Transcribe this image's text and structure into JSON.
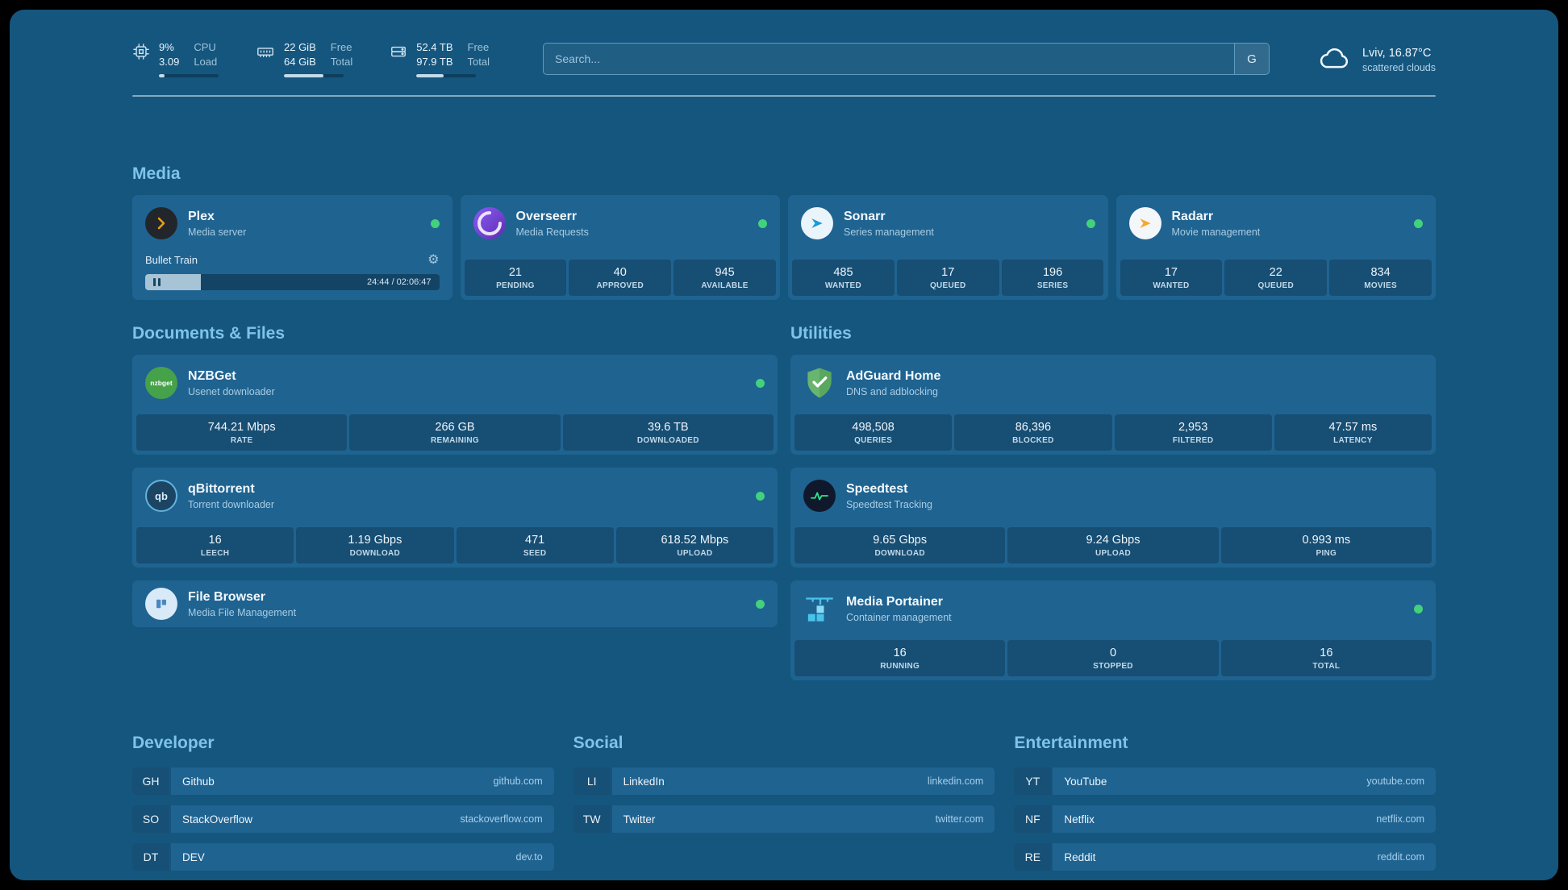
{
  "header": {
    "cpu": {
      "value_top": "9%",
      "value_bottom": "3.09",
      "label_top": "CPU",
      "label_bottom": "Load",
      "progress_percent": 9
    },
    "memory": {
      "value_top": "22 GiB",
      "value_bottom": "64 GiB",
      "label_top": "Free",
      "label_bottom": "Total",
      "progress_percent": 66
    },
    "disk": {
      "value_top": "52.4 TB",
      "value_bottom": "97.9 TB",
      "label_top": "Free",
      "label_bottom": "Total",
      "progress_percent": 46
    },
    "search": {
      "placeholder": "Search...",
      "provider_button": "G"
    },
    "weather": {
      "location": "Lviv, 16.87°C",
      "condition": "scattered clouds"
    }
  },
  "sections": {
    "media": {
      "title": "Media",
      "plex": {
        "name": "Plex",
        "subtitle": "Media server",
        "now_playing": "Bullet Train",
        "elapsed_total": "24:44 / 02:06:47",
        "progress_percent": 19
      },
      "overseerr": {
        "name": "Overseerr",
        "subtitle": "Media Requests",
        "stats": [
          {
            "value": "21",
            "label": "PENDING"
          },
          {
            "value": "40",
            "label": "APPROVED"
          },
          {
            "value": "945",
            "label": "AVAILABLE"
          }
        ]
      },
      "sonarr": {
        "name": "Sonarr",
        "subtitle": "Series management",
        "stats": [
          {
            "value": "485",
            "label": "WANTED"
          },
          {
            "value": "17",
            "label": "QUEUED"
          },
          {
            "value": "196",
            "label": "SERIES"
          }
        ]
      },
      "radarr": {
        "name": "Radarr",
        "subtitle": "Movie management",
        "stats": [
          {
            "value": "17",
            "label": "WANTED"
          },
          {
            "value": "22",
            "label": "QUEUED"
          },
          {
            "value": "834",
            "label": "MOVIES"
          }
        ]
      }
    },
    "documents": {
      "title": "Documents & Files",
      "nzbget": {
        "name": "NZBGet",
        "subtitle": "Usenet downloader",
        "icon_text": "nzbget",
        "stats": [
          {
            "value": "744.21 Mbps",
            "label": "RATE"
          },
          {
            "value": "266 GB",
            "label": "REMAINING"
          },
          {
            "value": "39.6 TB",
            "label": "DOWNLOADED"
          }
        ]
      },
      "qbittorrent": {
        "name": "qBittorrent",
        "subtitle": "Torrent downloader",
        "icon_text": "qb",
        "stats": [
          {
            "value": "16",
            "label": "LEECH"
          },
          {
            "value": "1.19 Gbps",
            "label": "DOWNLOAD"
          },
          {
            "value": "471",
            "label": "SEED"
          },
          {
            "value": "618.52 Mbps",
            "label": "UPLOAD"
          }
        ]
      },
      "filebrowser": {
        "name": "File Browser",
        "subtitle": "Media File Management"
      }
    },
    "utilities": {
      "title": "Utilities",
      "adguard": {
        "name": "AdGuard Home",
        "subtitle": "DNS and adblocking",
        "stats": [
          {
            "value": "498,508",
            "label": "QUERIES"
          },
          {
            "value": "86,396",
            "label": "BLOCKED"
          },
          {
            "value": "2,953",
            "label": "FILTERED"
          },
          {
            "value": "47.57 ms",
            "label": "LATENCY"
          }
        ]
      },
      "speedtest": {
        "name": "Speedtest",
        "subtitle": "Speedtest Tracking",
        "stats": [
          {
            "value": "9.65 Gbps",
            "label": "DOWNLOAD"
          },
          {
            "value": "9.24 Gbps",
            "label": "UPLOAD"
          },
          {
            "value": "0.993 ms",
            "label": "PING"
          }
        ]
      },
      "portainer": {
        "name": "Media Portainer",
        "subtitle": "Container management",
        "stats": [
          {
            "value": "16",
            "label": "RUNNING"
          },
          {
            "value": "0",
            "label": "STOPPED"
          },
          {
            "value": "16",
            "label": "TOTAL"
          }
        ]
      }
    }
  },
  "bookmarks": {
    "developer": {
      "title": "Developer",
      "items": [
        {
          "abbr": "GH",
          "name": "Github",
          "url": "github.com"
        },
        {
          "abbr": "SO",
          "name": "StackOverflow",
          "url": "stackoverflow.com"
        },
        {
          "abbr": "DT",
          "name": "DEV",
          "url": "dev.to"
        }
      ]
    },
    "social": {
      "title": "Social",
      "items": [
        {
          "abbr": "LI",
          "name": "LinkedIn",
          "url": "linkedin.com"
        },
        {
          "abbr": "TW",
          "name": "Twitter",
          "url": "twitter.com"
        }
      ]
    },
    "entertainment": {
      "title": "Entertainment",
      "items": [
        {
          "abbr": "YT",
          "name": "YouTube",
          "url": "youtube.com"
        },
        {
          "abbr": "NF",
          "name": "Netflix",
          "url": "netflix.com"
        },
        {
          "abbr": "RE",
          "name": "Reddit",
          "url": "reddit.com"
        }
      ]
    }
  },
  "colors": {
    "background": "#15567E",
    "card": "#1F6391",
    "accent_heading": "#7EC3EC",
    "status_online": "#43D17C"
  }
}
